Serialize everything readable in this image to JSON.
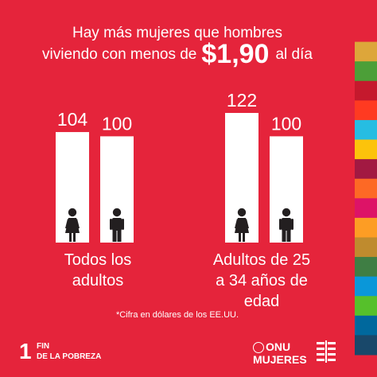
{
  "header": {
    "line1": "Hay más mujeres que hombres",
    "line2_pre": "viviendo con menos de",
    "line2_price": "$1,90",
    "line2_post": "al día"
  },
  "chart_data": {
    "type": "bar",
    "title": "Hay más mujeres que hombres viviendo con menos de $1,90 al día",
    "categories": [
      "Todos los adultos",
      "Adultos de 25 a 34 años de edad"
    ],
    "series": [
      {
        "values": [
          104,
          122
        ]
      },
      {
        "values": [
          100,
          100
        ]
      }
    ],
    "ylim": [
      0,
      122
    ],
    "grid": false,
    "icons": [
      "woman-icon",
      "man-icon"
    ],
    "colors": {
      "background": "#e5243b",
      "bars": "#ffffff",
      "icons": "#231f20"
    }
  },
  "footnote": "*Cifra en dólares de los EE.UU.",
  "footer": {
    "goal_number": "1",
    "goal_line1": "FIN",
    "goal_line2": "DE LA POBREZA",
    "logo_top": "ONU",
    "logo_bottom": "MUJERES"
  },
  "sdg_stripe_colors": [
    "#e5243b",
    "#dda63a",
    "#4c9f38",
    "#c5192d",
    "#ff3a21",
    "#26bde2",
    "#fcc30b",
    "#a21942",
    "#fd6925",
    "#dd1367",
    "#fd9d24",
    "#bf8b2e",
    "#3f7e44",
    "#0a97d9",
    "#56c02b",
    "#00689d",
    "#19486a"
  ]
}
